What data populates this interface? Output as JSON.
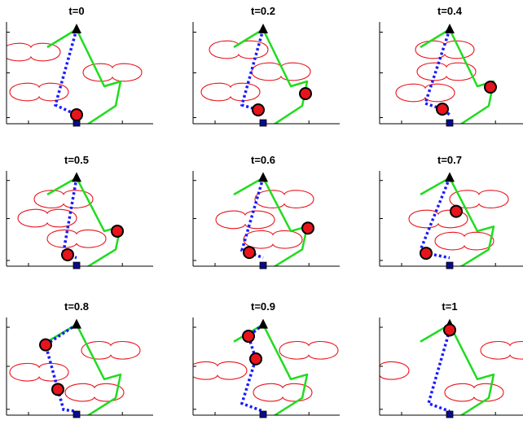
{
  "figure": {
    "panels": [
      {
        "title": "t=0"
      },
      {
        "title": "t=0.2"
      },
      {
        "title": "t=0.4"
      },
      {
        "title": "t=0.5"
      },
      {
        "title": "t=0.6"
      },
      {
        "title": "t=0.7"
      },
      {
        "title": "t=0.8"
      },
      {
        "title": "t=0.9"
      },
      {
        "title": "t=1"
      }
    ],
    "colors": {
      "agent_fill": "#e8141c",
      "agent_stroke": "#000000",
      "obstacle": "#e8141c",
      "green_path": "#1fdc1f",
      "blue_path": "#1a1aff",
      "start_marker": "#0a0a8a",
      "goal_marker": "#000000",
      "axes": "#000000"
    },
    "icons": {
      "start": "filled-square",
      "goal": "filled-triangle",
      "agent": "filled-circle",
      "obstacle": "double-lobed-outline"
    }
  }
}
